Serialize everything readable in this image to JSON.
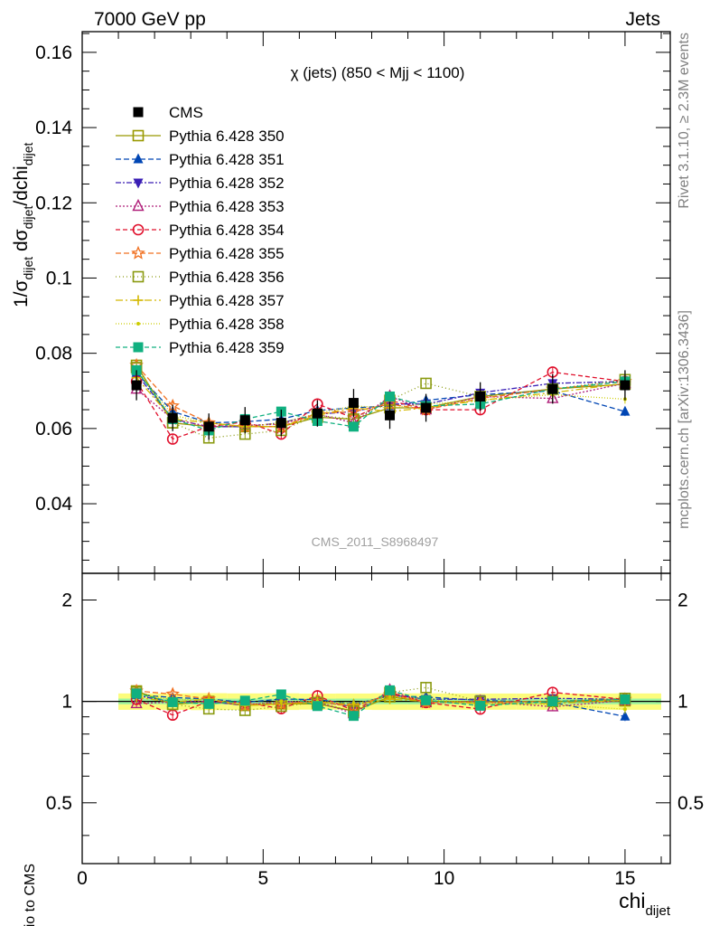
{
  "header": {
    "left": "7000 GeV pp",
    "right": "Jets"
  },
  "side_text": {
    "rivet": "Rivet 3.1.10, ≥ 2.3M events",
    "mcplots": "mcplots.cern.ch [arXiv:1306.3436]"
  },
  "chart_data": {
    "type": "scatter",
    "title": "χ (jets) (850 < Mjj < 1100)",
    "watermark": "CMS_2011_S8968497",
    "ylabel_main": {
      "pre": "1/σ",
      "sub1": "dijet",
      "mid": " dσ",
      "sub2": "dijet",
      "post": "/dchi",
      "sub3": "dijet"
    },
    "ylabel_ratio": "Ratio to CMS",
    "xlabel": {
      "main": "chi",
      "sub": "dijet"
    },
    "xlim": [
      0,
      16.25
    ],
    "ylim_main": [
      0.0215,
      0.1655
    ],
    "ylim_ratio": [
      0.33,
      2.4
    ],
    "x_ticks": [
      "0",
      "5",
      "10",
      "15"
    ],
    "y_ticks_main": [
      "0.04",
      "0.06",
      "0.08",
      "0.1",
      "0.12",
      "0.14",
      "0.16"
    ],
    "y_ticks_ratio": [
      "0.5",
      "1",
      "2"
    ],
    "x": [
      1.5,
      2.5,
      3.5,
      4.5,
      5.5,
      6.5,
      7.5,
      8.5,
      9.5,
      11,
      13,
      15
    ],
    "bin_edges": [
      1,
      2,
      3,
      4,
      5,
      6,
      7,
      8,
      9,
      10,
      12,
      14,
      16
    ],
    "data": {
      "name": "CMS",
      "values": [
        0.0715,
        0.0628,
        0.0605,
        0.0622,
        0.0615,
        0.064,
        0.0668,
        0.0635,
        0.0655,
        0.0685,
        0.0705,
        0.0715
      ],
      "err_stat": [
        0.0014,
        0.0012,
        0.0012,
        0.0012,
        0.0012,
        0.0012,
        0.0013,
        0.0012,
        0.0013,
        0.0012,
        0.0013,
        0.0014
      ],
      "err_total": [
        0.004,
        0.0035,
        0.0035,
        0.0035,
        0.0035,
        0.0035,
        0.0037,
        0.0036,
        0.0037,
        0.0038,
        0.0039,
        0.004
      ]
    },
    "series": [
      {
        "name": "Pythia 6.428 350",
        "color": "#999900",
        "marker": "square-open",
        "dash": "",
        "values": [
          0.0768,
          0.0615,
          0.0605,
          0.0605,
          0.0605,
          0.063,
          0.0625,
          0.0655,
          0.0655,
          0.0685,
          0.0705,
          0.0718
        ]
      },
      {
        "name": "Pythia 6.428 351",
        "color": "#0046b4",
        "marker": "triangle-up",
        "dash": "6,3",
        "values": [
          0.0748,
          0.0645,
          0.0615,
          0.0618,
          0.0625,
          0.0648,
          0.0655,
          0.066,
          0.0675,
          0.069,
          0.07,
          0.0645
        ]
      },
      {
        "name": "Pythia 6.428 352",
        "color": "#3a1fb5",
        "marker": "triangle-down",
        "dash": "6,2,2,2",
        "values": [
          0.0745,
          0.0625,
          0.0605,
          0.0605,
          0.0615,
          0.0638,
          0.0645,
          0.0665,
          0.0665,
          0.0695,
          0.072,
          0.0725
        ]
      },
      {
        "name": "Pythia 6.428 353",
        "color": "#b0207a",
        "marker": "triangle-up-open",
        "dash": "2,2",
        "values": [
          0.0705,
          0.0625,
          0.0605,
          0.0608,
          0.0612,
          0.0638,
          0.0615,
          0.0685,
          0.065,
          0.0685,
          0.068,
          0.072
        ]
      },
      {
        "name": "Pythia 6.428 354",
        "color": "#e0102c",
        "marker": "circle-open",
        "dash": "5,3",
        "values": [
          0.0725,
          0.0572,
          0.0605,
          0.0618,
          0.0585,
          0.0665,
          0.0628,
          0.0675,
          0.065,
          0.065,
          0.075,
          0.0725
        ]
      },
      {
        "name": "Pythia 6.428 355",
        "color": "#f07020",
        "marker": "star-open",
        "dash": "6,3",
        "values": [
          0.0768,
          0.066,
          0.0615,
          0.0605,
          0.0605,
          0.064,
          0.0645,
          0.0665,
          0.065,
          0.068,
          0.0705,
          0.0725
        ]
      },
      {
        "name": "Pythia 6.428 356",
        "color": "#8a9a10",
        "marker": "square-open",
        "dash": "1,3",
        "values": [
          0.0762,
          0.0615,
          0.0575,
          0.0585,
          0.0595,
          0.0635,
          0.0625,
          0.0675,
          0.072,
          0.0685,
          0.0705,
          0.073
        ]
      },
      {
        "name": "Pythia 6.428 357",
        "color": "#d4b800",
        "marker": "cross",
        "dash": "8,3,2,3",
        "values": [
          0.0735,
          0.0625,
          0.0615,
          0.0605,
          0.0605,
          0.0635,
          0.0655,
          0.0645,
          0.0655,
          0.0675,
          0.0695,
          0.072
        ]
      },
      {
        "name": "Pythia 6.428 358",
        "color": "#cccc00",
        "marker": "dot",
        "dash": "1,2",
        "values": [
          0.0755,
          0.0635,
          0.0615,
          0.0605,
          0.0615,
          0.064,
          0.066,
          0.0655,
          0.0665,
          0.0675,
          0.069,
          0.0678
        ]
      },
      {
        "name": "Pythia 6.428 359",
        "color": "#10b080",
        "marker": "square",
        "dash": "5,3",
        "values": [
          0.0755,
          0.0625,
          0.0595,
          0.0625,
          0.0645,
          0.062,
          0.0605,
          0.0685,
          0.066,
          0.0665,
          0.0705,
          0.0725
        ]
      }
    ]
  }
}
